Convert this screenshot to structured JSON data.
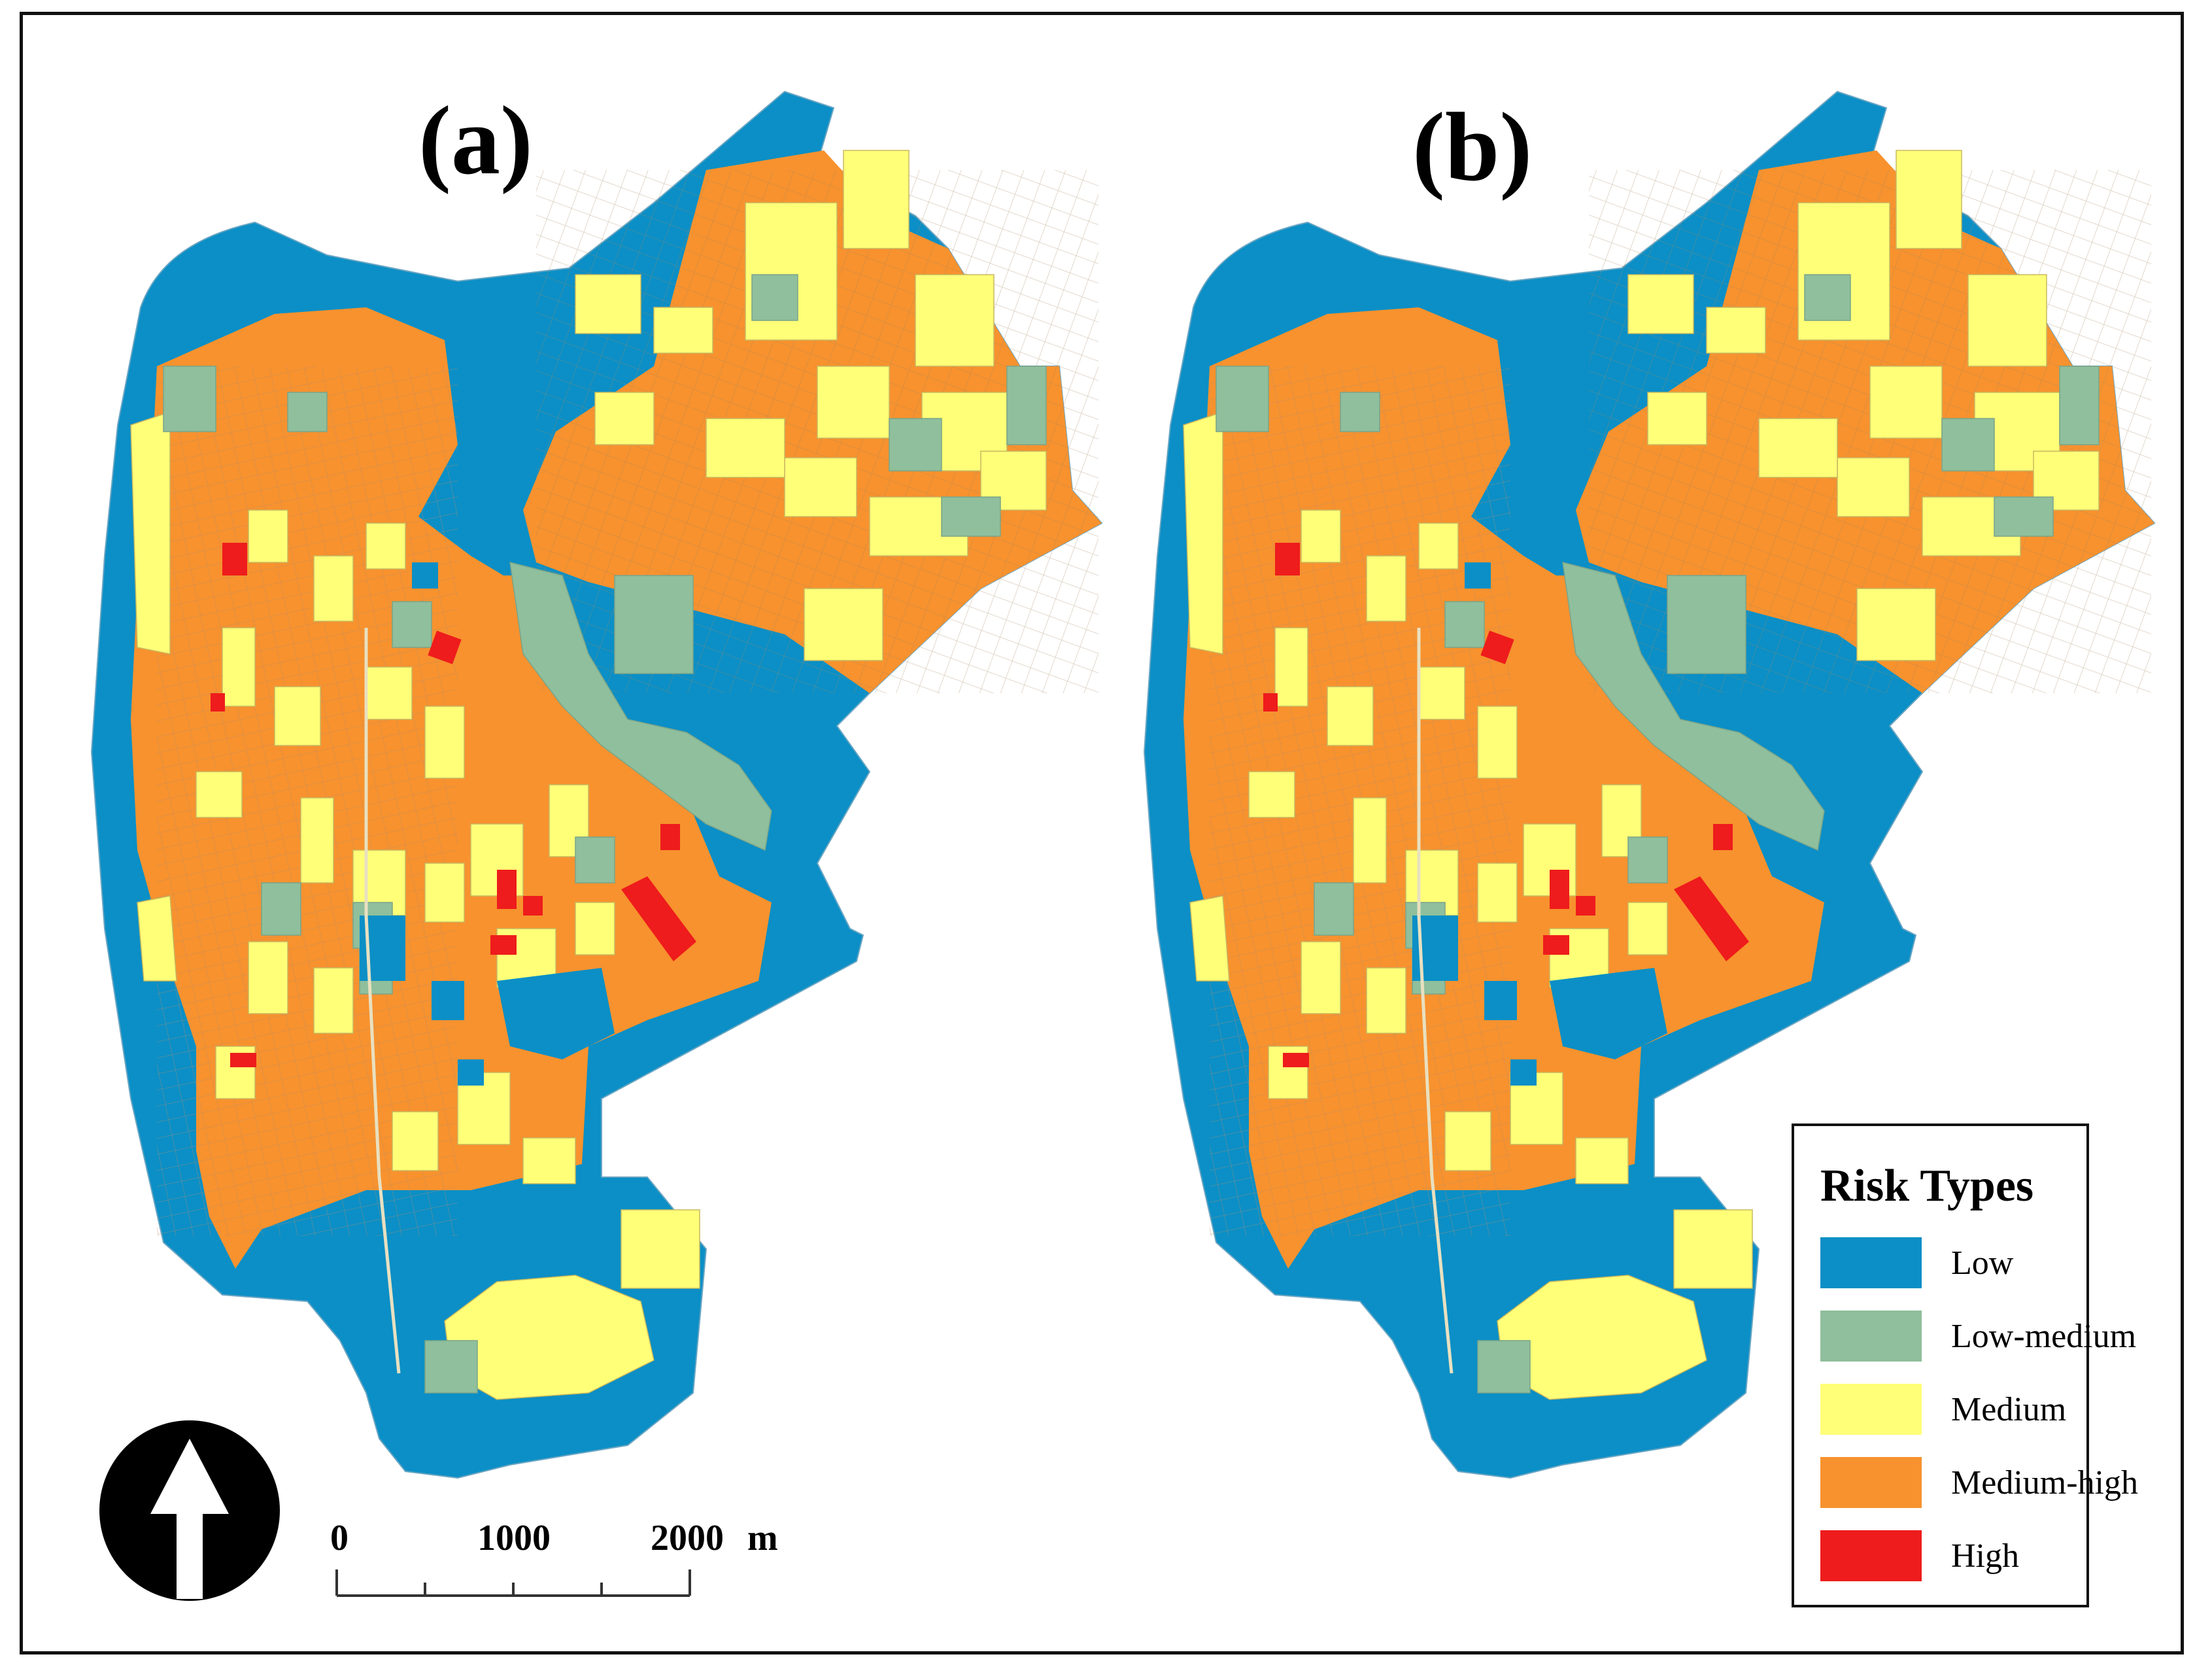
{
  "panels": [
    {
      "label": "(a)"
    },
    {
      "label": "(b)"
    }
  ],
  "legend": {
    "title": "Risk Types",
    "items": [
      {
        "label": "Low",
        "color": "#0b8fc6"
      },
      {
        "label": "Low-medium",
        "color": "#8fbf9c"
      },
      {
        "label": "Medium",
        "color": "#ffff78"
      },
      {
        "label": "Medium-high",
        "color": "#f7922e"
      },
      {
        "label": "High",
        "color": "#ee1c1c"
      }
    ]
  },
  "scale_bar": {
    "ticks": [
      "0",
      "1000",
      "2000"
    ],
    "unit": "m"
  },
  "north_arrow": {
    "icon": "north-arrow-icon"
  }
}
